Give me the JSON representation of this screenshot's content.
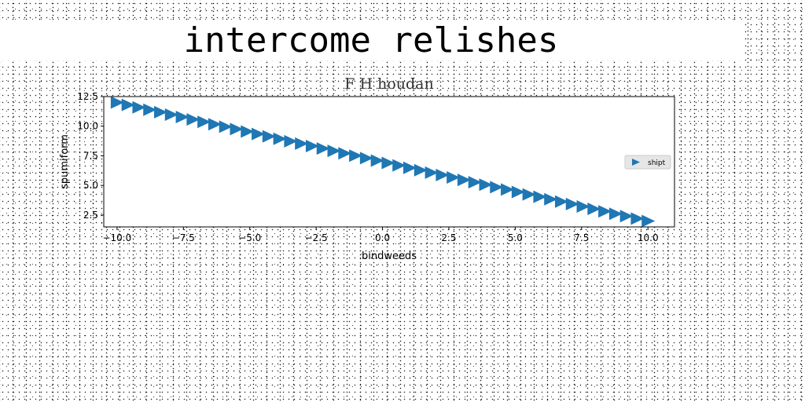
{
  "title": "intercome relishes",
  "chart_data": {
    "type": "scatter",
    "title": "F H houdan",
    "xlabel": "bindweeds",
    "ylabel": "spumiform",
    "xlim": [
      -10.5,
      11.0
    ],
    "ylim": [
      1.5,
      12.5
    ],
    "xticks": [
      -10.0,
      -7.5,
      -5.0,
      -2.5,
      0.0,
      2.5,
      5.0,
      7.5,
      10.0
    ],
    "xtick_labels": [
      "−10.0",
      "−7.5",
      "−5.0",
      "−2.5",
      "0.0",
      "2.5",
      "5.0",
      "7.5",
      "10.0"
    ],
    "yticks": [
      2.5,
      5.0,
      7.5,
      10.0,
      12.5
    ],
    "ytick_labels": [
      "2.5",
      "5.0",
      "7.5",
      "10.0",
      "12.5"
    ],
    "grid": false,
    "legend_position": "center-right",
    "series": [
      {
        "name": "shipt",
        "marker": "triangle-right",
        "color": "#1f77b4",
        "x": [
          -10.0,
          -9.5918,
          -9.1837,
          -8.7755,
          -8.3673,
          -7.9592,
          -7.551,
          -7.1429,
          -6.7347,
          -6.3265,
          -5.9184,
          -5.5102,
          -5.102,
          -4.6939,
          -4.2857,
          -3.8776,
          -3.4694,
          -3.0612,
          -2.6531,
          -2.2449,
          -1.8367,
          -1.4286,
          -1.0204,
          -0.6122,
          -0.2041,
          0.2041,
          0.6122,
          1.0204,
          1.4286,
          1.8367,
          2.2449,
          2.6531,
          3.0612,
          3.4694,
          3.8776,
          4.2857,
          4.6939,
          5.102,
          5.5102,
          5.9184,
          6.3265,
          6.7347,
          7.1429,
          7.551,
          7.9592,
          8.3673,
          8.7755,
          9.1837,
          9.5918,
          10.0
        ],
        "y": [
          12.0,
          11.796,
          11.592,
          11.388,
          11.184,
          10.98,
          10.776,
          10.571,
          10.367,
          10.163,
          9.959,
          9.755,
          9.551,
          9.347,
          9.143,
          8.939,
          8.735,
          8.531,
          8.327,
          8.122,
          7.918,
          7.714,
          7.51,
          7.306,
          7.102,
          6.898,
          6.694,
          6.49,
          6.286,
          6.082,
          5.878,
          5.673,
          5.469,
          5.265,
          5.061,
          4.857,
          4.653,
          4.449,
          4.245,
          4.041,
          3.837,
          3.633,
          3.429,
          3.224,
          3.02,
          2.816,
          2.612,
          2.408,
          2.204,
          2.0
        ]
      }
    ]
  }
}
